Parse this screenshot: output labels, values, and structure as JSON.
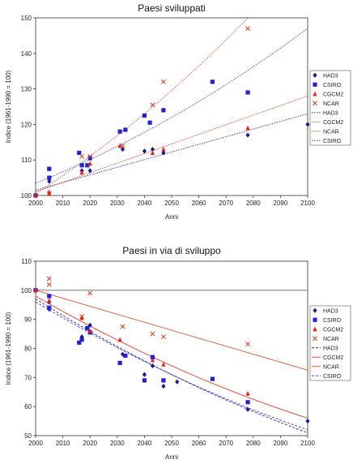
{
  "chart_data": [
    {
      "type": "scatter",
      "title": "Paesi sviluppati",
      "xlabel": "Anni",
      "ylabel": "Indice (1961-1990 = 100)",
      "xlim": [
        2000,
        2100
      ],
      "ylim": [
        100,
        150
      ],
      "xticks": [
        2000,
        2010,
        2020,
        2030,
        2040,
        2050,
        2060,
        2070,
        2080,
        2090,
        2100
      ],
      "yticks": [
        100,
        110,
        120,
        130,
        140,
        150
      ],
      "grid": false,
      "legend_position": "right",
      "series": [
        {
          "name": "HAD3",
          "marker": "diamond",
          "color": "#1a1a8c",
          "points": [
            [
              2000,
              100
            ],
            [
              2005,
              104
            ],
            [
              2017,
              107
            ],
            [
              2020,
              107
            ],
            [
              2032,
              113
            ],
            [
              2040,
              112.5
            ],
            [
              2043,
              113
            ],
            [
              2047,
              112
            ],
            [
              2078,
              117
            ],
            [
              2100,
              120
            ]
          ]
        },
        {
          "name": "CSIRO",
          "marker": "square",
          "color": "#2323c8",
          "points": [
            [
              2000,
              100
            ],
            [
              2005,
              107.5
            ],
            [
              2005,
              105
            ],
            [
              2016,
              112
            ],
            [
              2017,
              108.5
            ],
            [
              2019,
              108.5
            ],
            [
              2020,
              110.5
            ],
            [
              2031,
              118
            ],
            [
              2033,
              118.5
            ],
            [
              2040,
              122.5
            ],
            [
              2042,
              120.5
            ],
            [
              2047,
              124
            ],
            [
              2065,
              132
            ],
            [
              2078,
              129
            ]
          ]
        },
        {
          "name": "CGCM2",
          "marker": "triangle",
          "color": "#e02020",
          "points": [
            [
              2000,
              100
            ],
            [
              2005,
              101
            ],
            [
              2005,
              100.5
            ],
            [
              2017,
              106.5
            ],
            [
              2020,
              109
            ],
            [
              2031,
              114
            ],
            [
              2043,
              112
            ],
            [
              2047,
              113
            ],
            [
              2078,
              119
            ]
          ]
        },
        {
          "name": "NCAR",
          "marker": "x",
          "color": "#c04020",
          "points": [
            [
              2005,
              100.5
            ],
            [
              2017,
              111
            ],
            [
              2020,
              111
            ],
            [
              2032,
              114
            ],
            [
              2043,
              125.5
            ],
            [
              2047,
              132
            ],
            [
              2078,
              147
            ]
          ]
        }
      ],
      "trendlines": [
        {
          "name": "HAD3",
          "style": "dotted",
          "color": "#2a2a8a",
          "points": [
            [
              2000,
              101.5
            ],
            [
              2100,
              123
            ]
          ]
        },
        {
          "name": "CGCM2",
          "style": "dotted",
          "color": "#d04030",
          "points": [
            [
              2000,
              101
            ],
            [
              2100,
              128
            ]
          ]
        },
        {
          "name": "NCAR",
          "style": "dotted",
          "color": "#d05030",
          "points": [
            [
              2000,
              100.5
            ],
            [
              2040,
              123
            ],
            [
              2078,
              150
            ]
          ]
        },
        {
          "name": "CSIRO",
          "style": "dotted",
          "color": "#3a3ad0",
          "points": [
            [
              2000,
              103.5
            ],
            [
              2050,
              122
            ],
            [
              2100,
              147
            ]
          ]
        }
      ],
      "legend": [
        "HAD3",
        "CSIRO",
        "CGCM2",
        "NCAR",
        "HAD3",
        "CGCM2",
        "NCAR",
        "CSIRO"
      ]
    },
    {
      "type": "scatter",
      "title": "Paesi in via di sviluppo",
      "xlabel": "Anni",
      "ylabel": "Indice (1961-1990 = 100)",
      "xlim": [
        2000,
        2100
      ],
      "ylim": [
        50,
        110
      ],
      "xticks": [
        2000,
        2010,
        2020,
        2030,
        2040,
        2050,
        2060,
        2070,
        2080,
        2090,
        2100
      ],
      "yticks": [
        50,
        60,
        70,
        80,
        90,
        100,
        110
      ],
      "grid": false,
      "reference_line": 100,
      "legend_position": "right",
      "series": [
        {
          "name": "HAD3",
          "marker": "diamond",
          "color": "#1a1a8c",
          "points": [
            [
              2000,
              100
            ],
            [
              2005,
              96
            ],
            [
              2005,
              93.5
            ],
            [
              2017,
              84
            ],
            [
              2020,
              88
            ],
            [
              2032,
              78
            ],
            [
              2040,
              71
            ],
            [
              2043,
              74
            ],
            [
              2047,
              67
            ],
            [
              2052,
              68.5
            ],
            [
              2078,
              59
            ],
            [
              2100,
              55
            ]
          ]
        },
        {
          "name": "CSIRO",
          "marker": "square",
          "color": "#2323c8",
          "points": [
            [
              2000,
              100
            ],
            [
              2005,
              98
            ],
            [
              2005,
              94
            ],
            [
              2016,
              82
            ],
            [
              2017,
              83
            ],
            [
              2019,
              87
            ],
            [
              2020,
              85.5
            ],
            [
              2031,
              75
            ],
            [
              2033,
              77.5
            ],
            [
              2040,
              69
            ],
            [
              2043,
              77
            ],
            [
              2047,
              69
            ],
            [
              2065,
              69.5
            ],
            [
              2078,
              61.5
            ]
          ]
        },
        {
          "name": "CGCM2",
          "marker": "triangle",
          "color": "#e02020",
          "points": [
            [
              2000,
              100
            ],
            [
              2005,
              96.5
            ],
            [
              2017,
              90.5
            ],
            [
              2020,
              86
            ],
            [
              2031,
              83
            ],
            [
              2043,
              76
            ],
            [
              2047,
              74.5
            ],
            [
              2078,
              64.5
            ]
          ]
        },
        {
          "name": "NCAR",
          "marker": "x",
          "color": "#c04020",
          "points": [
            [
              2005,
              104
            ],
            [
              2005,
              102
            ],
            [
              2017,
              91
            ],
            [
              2020,
              99
            ],
            [
              2032,
              87.5
            ],
            [
              2043,
              85
            ],
            [
              2047,
              84
            ],
            [
              2078,
              81.5
            ]
          ]
        }
      ],
      "trendlines": [
        {
          "name": "HAD3",
          "style": "dashed",
          "color": "#2a2a8a",
          "points": [
            [
              2000,
              97
            ],
            [
              2050,
              71
            ],
            [
              2100,
              51
            ]
          ]
        },
        {
          "name": "CGCM2",
          "style": "solid",
          "color": "#d04030",
          "points": [
            [
              2000,
              98
            ],
            [
              2050,
              74
            ],
            [
              2100,
              56
            ]
          ]
        },
        {
          "name": "NCAR",
          "style": "solid",
          "color": "#d05030",
          "points": [
            [
              2000,
              100
            ],
            [
              2100,
              72.5
            ]
          ]
        },
        {
          "name": "CSIRO",
          "style": "dashed",
          "color": "#3a3ad0",
          "points": [
            [
              2000,
              96
            ],
            [
              2050,
              71
            ],
            [
              2100,
              52
            ]
          ]
        }
      ],
      "legend": [
        "HAD3",
        "CSIRO",
        "CGCM2",
        "NCAR",
        "HAD3",
        "CGCM2",
        "NCAR",
        "CSIRO"
      ]
    }
  ]
}
